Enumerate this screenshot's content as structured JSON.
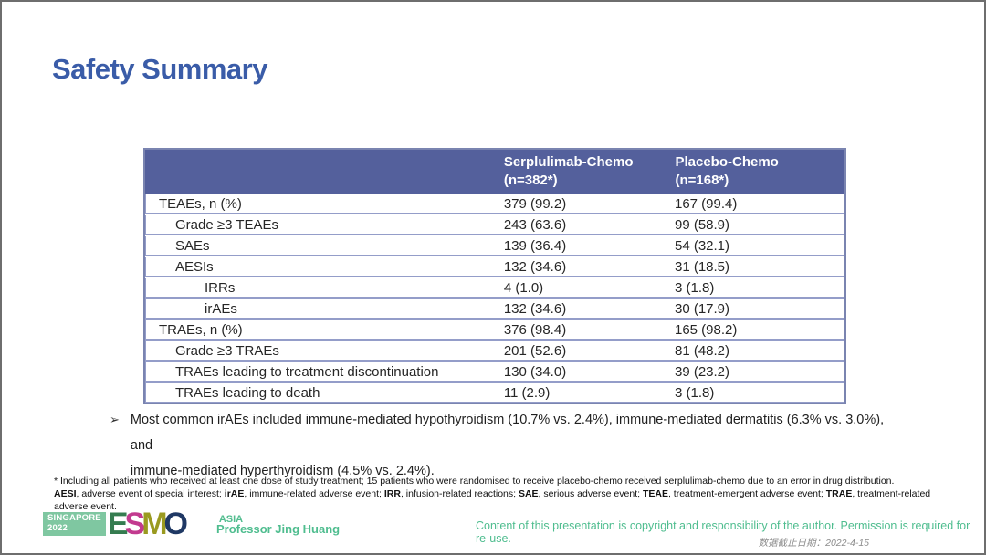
{
  "slide": {
    "title": "Safety Summary"
  },
  "table": {
    "header": {
      "col1": {
        "line1": "Serplulimab-Chemo",
        "line2": "(n=382*)"
      },
      "col2": {
        "line1": "Placebo-Chemo",
        "line2": "(n=168*)"
      }
    },
    "rows": [
      {
        "label": "TEAEs, n (%)",
        "indent": 0,
        "serplulimab": "379 (99.2)",
        "placebo": "167 (99.4)"
      },
      {
        "label": "Grade ≥3 TEAEs",
        "indent": 1,
        "serplulimab": "243 (63.6)",
        "placebo": "99 (58.9)"
      },
      {
        "label": "SAEs",
        "indent": 1,
        "serplulimab": "139 (36.4)",
        "placebo": "54 (32.1)"
      },
      {
        "label": "AESIs",
        "indent": 1,
        "serplulimab": "132 (34.6)",
        "placebo": "31 (18.5)"
      },
      {
        "label": "IRRs",
        "indent": 2,
        "serplulimab": "4 (1.0)",
        "placebo": "3 (1.8)"
      },
      {
        "label": "irAEs",
        "indent": 2,
        "serplulimab": "132 (34.6)",
        "placebo": "30 (17.9)"
      },
      {
        "label": "TRAEs, n (%)",
        "indent": 0,
        "serplulimab": "376 (98.4)",
        "placebo": "165 (98.2)"
      },
      {
        "label": "Grade ≥3 TRAEs",
        "indent": 1,
        "serplulimab": "201 (52.6)",
        "placebo": "81 (48.2)"
      },
      {
        "label": "TRAEs leading to treatment discontinuation",
        "indent": 1,
        "serplulimab": "130 (34.0)",
        "placebo": "39 (23.2)"
      },
      {
        "label": "TRAEs leading to death",
        "indent": 1,
        "serplulimab": "11 (2.9)",
        "placebo": "3 (1.8)"
      }
    ]
  },
  "bullet": {
    "marker": "➢",
    "lines": [
      "Most common irAEs included immune-mediated hypothyroidism (10.7% vs. 2.4%), immune-mediated dermatitis (6.3% vs. 3.0%), and",
      "immune-mediated hyperthyroidism (4.5% vs. 2.4%)."
    ]
  },
  "footnotes": {
    "line1": "* Including all patients who received at least one dose of study treatment; 15 patients who were randomised to receive placebo-chemo received serplulimab-chemo due to an error in drug distribution.",
    "line2_segments": [
      {
        "text": "AESI",
        "bold": true
      },
      {
        "text": ", adverse event of special interest; ",
        "bold": false
      },
      {
        "text": "irAE",
        "bold": true
      },
      {
        "text": ", immune-related adverse event; ",
        "bold": false
      },
      {
        "text": "IRR",
        "bold": true
      },
      {
        "text": ", infusion-related reactions; ",
        "bold": false
      },
      {
        "text": "SAE",
        "bold": true
      },
      {
        "text": ", serious adverse event; ",
        "bold": false
      },
      {
        "text": "TEAE",
        "bold": true
      },
      {
        "text": ", treatment-emergent adverse event; ",
        "bold": false
      },
      {
        "text": "TRAE",
        "bold": true
      },
      {
        "text": ", treatment-related adverse event.",
        "bold": false
      }
    ]
  },
  "footer": {
    "logo": {
      "badge_line1": "SINGAPORE",
      "badge_line2": "2022",
      "letters": [
        {
          "char": "E",
          "color": "#357c50"
        },
        {
          "char": "S",
          "color": "#c23a8f"
        },
        {
          "char": "M",
          "color": "#9a9a20"
        },
        {
          "char": "O",
          "color": "#1f3864"
        }
      ],
      "asia": "ASIA"
    },
    "presenter": "Professor Jing Huang",
    "copyright": "Content of this presentation is copyright and responsibility of the author. Permission is required for re-use.",
    "data_cutoff": "数据截止日期：2022-4-15"
  },
  "colors": {
    "title_blue": "#3a5ca8",
    "table_header_bg": "#54609c",
    "table_border": "#949dc9",
    "accent_green": "#4fbd8f",
    "date_gray": "#8c8c8c"
  }
}
